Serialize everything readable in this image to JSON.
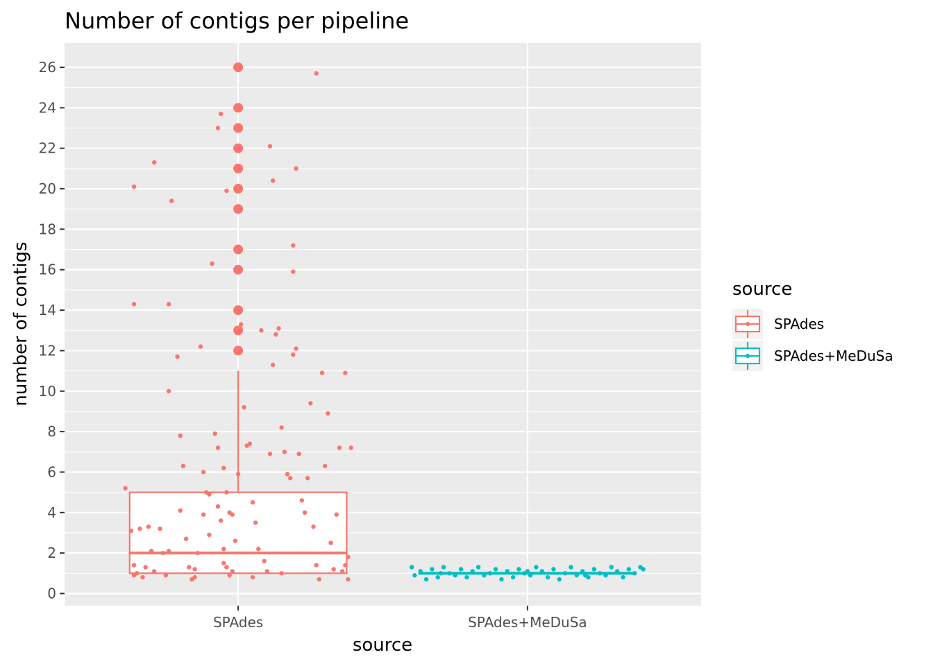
{
  "chart_data": {
    "type": "box",
    "title": "Number of contigs per pipeline",
    "xlabel": "source",
    "ylabel": "number of contigs",
    "categories": [
      "SPAdes",
      "SPAdes+MeDuSa"
    ],
    "ylim": [
      -0.6,
      27.2
    ],
    "yticks": [
      0,
      2,
      4,
      6,
      8,
      10,
      12,
      14,
      16,
      18,
      20,
      22,
      24,
      26
    ],
    "grid": true,
    "legend": {
      "title": "source",
      "position": "right",
      "entries": [
        "SPAdes",
        "SPAdes+MeDuSa"
      ]
    },
    "colors": {
      "SPAdes": "#F8766D",
      "SPAdes+MeDuSa": "#00BFC4",
      "panel": "#EBEBEB",
      "grid": "#FFFFFF"
    },
    "series": [
      {
        "name": "SPAdes",
        "box": {
          "min": 1,
          "q1": 1,
          "median": 2,
          "q3": 5,
          "whisker_max": 11
        },
        "outliers": [
          12,
          13,
          14,
          16,
          17,
          19,
          20,
          21,
          22,
          23,
          24,
          26
        ],
        "points": [
          [
            -0.39,
            5.2
          ],
          [
            -0.37,
            3.1
          ],
          [
            -0.36,
            1.4
          ],
          [
            -0.34,
            3.2
          ],
          [
            -0.36,
            0.9
          ],
          [
            -0.35,
            1.0
          ],
          [
            -0.33,
            0.8
          ],
          [
            -0.31,
            3.3
          ],
          [
            -0.3,
            2.1
          ],
          [
            -0.32,
            1.3
          ],
          [
            -0.29,
            1.1
          ],
          [
            -0.27,
            3.2
          ],
          [
            -0.26,
            2.0
          ],
          [
            -0.25,
            0.9
          ],
          [
            -0.24,
            2.1
          ],
          [
            -0.36,
            20.1
          ],
          [
            -0.36,
            14.3
          ],
          [
            -0.29,
            21.3
          ],
          [
            -0.24,
            10.0
          ],
          [
            -0.23,
            19.4
          ],
          [
            -0.24,
            14.3
          ],
          [
            -0.21,
            11.7
          ],
          [
            -0.2,
            7.8
          ],
          [
            -0.19,
            6.3
          ],
          [
            -0.2,
            4.1
          ],
          [
            -0.18,
            2.7
          ],
          [
            -0.17,
            1.3
          ],
          [
            -0.16,
            0.7
          ],
          [
            -0.15,
            1.2
          ],
          [
            -0.14,
            2.0
          ],
          [
            -0.13,
            12.2
          ],
          [
            -0.12,
            6.0
          ],
          [
            -0.11,
            5.0
          ],
          [
            -0.1,
            4.9
          ],
          [
            -0.12,
            3.9
          ],
          [
            -0.09,
            16.3
          ],
          [
            -0.08,
            7.9
          ],
          [
            -0.07,
            7.2
          ],
          [
            -0.07,
            4.3
          ],
          [
            -0.06,
            3.6
          ],
          [
            -0.05,
            2.2
          ],
          [
            -0.04,
            1.3
          ],
          [
            -0.03,
            0.9
          ],
          [
            -0.02,
            1.1
          ],
          [
            -0.07,
            23.0
          ],
          [
            -0.06,
            23.7
          ],
          [
            -0.04,
            19.9
          ],
          [
            -0.05,
            6.2
          ],
          [
            -0.04,
            5.0
          ],
          [
            -0.03,
            4.0
          ],
          [
            -0.02,
            3.9
          ],
          [
            -0.01,
            2.6
          ],
          [
            0.0,
            5.9
          ],
          [
            0.01,
            13.3
          ],
          [
            0.02,
            9.2
          ],
          [
            0.03,
            7.3
          ],
          [
            0.04,
            7.4
          ],
          [
            0.05,
            4.5
          ],
          [
            0.06,
            3.5
          ],
          [
            0.07,
            2.2
          ],
          [
            0.08,
            13.0
          ],
          [
            0.09,
            1.6
          ],
          [
            0.1,
            1.1
          ],
          [
            0.11,
            22.1
          ],
          [
            0.12,
            20.4
          ],
          [
            0.13,
            12.8
          ],
          [
            0.14,
            13.1
          ],
          [
            0.15,
            8.2
          ],
          [
            0.16,
            7.0
          ],
          [
            0.17,
            5.9
          ],
          [
            0.18,
            5.7
          ],
          [
            0.19,
            11.8
          ],
          [
            0.2,
            12.1
          ],
          [
            0.21,
            6.9
          ],
          [
            0.22,
            4.6
          ],
          [
            0.23,
            4.0
          ],
          [
            0.24,
            5.7
          ],
          [
            0.25,
            9.4
          ],
          [
            0.26,
            3.3
          ],
          [
            0.27,
            1.4
          ],
          [
            0.28,
            0.7
          ],
          [
            0.29,
            10.9
          ],
          [
            0.3,
            6.3
          ],
          [
            0.31,
            8.9
          ],
          [
            0.32,
            2.5
          ],
          [
            0.33,
            1.2
          ],
          [
            0.34,
            3.9
          ],
          [
            0.35,
            7.2
          ],
          [
            0.36,
            1.1
          ],
          [
            0.37,
            10.9
          ],
          [
            0.38,
            1.8
          ],
          [
            0.39,
            7.2
          ],
          [
            0.38,
            0.7
          ],
          [
            0.37,
            1.4
          ],
          [
            0.27,
            25.7
          ],
          [
            0.2,
            21.0
          ],
          [
            0.19,
            17.2
          ],
          [
            0.19,
            15.9
          ],
          [
            0.12,
            11.3
          ],
          [
            0.11,
            6.9
          ],
          [
            -0.05,
            1.5
          ],
          [
            -0.1,
            2.9
          ],
          [
            -0.15,
            0.8
          ],
          [
            0.05,
            0.8
          ],
          [
            0.15,
            1.0
          ]
        ]
      },
      {
        "name": "SPAdes+MeDuSa",
        "box": {
          "min": 1,
          "q1": 1,
          "median": 1,
          "q3": 1,
          "whisker_max": 1
        },
        "outliers": [],
        "points": [
          [
            -0.4,
            1.3
          ],
          [
            -0.39,
            0.9
          ],
          [
            -0.37,
            1.1
          ],
          [
            -0.35,
            0.7
          ],
          [
            -0.33,
            1.2
          ],
          [
            -0.31,
            0.8
          ],
          [
            -0.29,
            1.3
          ],
          [
            -0.27,
            1.0
          ],
          [
            -0.25,
            0.9
          ],
          [
            -0.23,
            1.2
          ],
          [
            -0.21,
            0.8
          ],
          [
            -0.19,
            1.1
          ],
          [
            -0.17,
            1.3
          ],
          [
            -0.15,
            0.9
          ],
          [
            -0.13,
            1.0
          ],
          [
            -0.11,
            1.2
          ],
          [
            -0.09,
            0.7
          ],
          [
            -0.07,
            1.1
          ],
          [
            -0.05,
            0.8
          ],
          [
            -0.03,
            1.2
          ],
          [
            -0.01,
            1.0
          ],
          [
            0.01,
            0.9
          ],
          [
            0.03,
            1.3
          ],
          [
            0.05,
            1.1
          ],
          [
            0.07,
            0.8
          ],
          [
            0.09,
            1.2
          ],
          [
            0.11,
            0.7
          ],
          [
            0.13,
            1.0
          ],
          [
            0.15,
            1.3
          ],
          [
            0.17,
            0.9
          ],
          [
            0.19,
            1.1
          ],
          [
            0.21,
            0.8
          ],
          [
            0.23,
            1.2
          ],
          [
            0.25,
            1.0
          ],
          [
            0.27,
            0.9
          ],
          [
            0.29,
            1.3
          ],
          [
            0.31,
            1.1
          ],
          [
            0.33,
            0.8
          ],
          [
            0.35,
            1.2
          ],
          [
            0.37,
            1.0
          ],
          [
            0.39,
            1.3
          ],
          [
            0.4,
            1.2
          ],
          [
            -0.3,
            1.0
          ],
          [
            0.0,
            1.1
          ],
          [
            0.2,
            0.9
          ]
        ]
      }
    ]
  }
}
